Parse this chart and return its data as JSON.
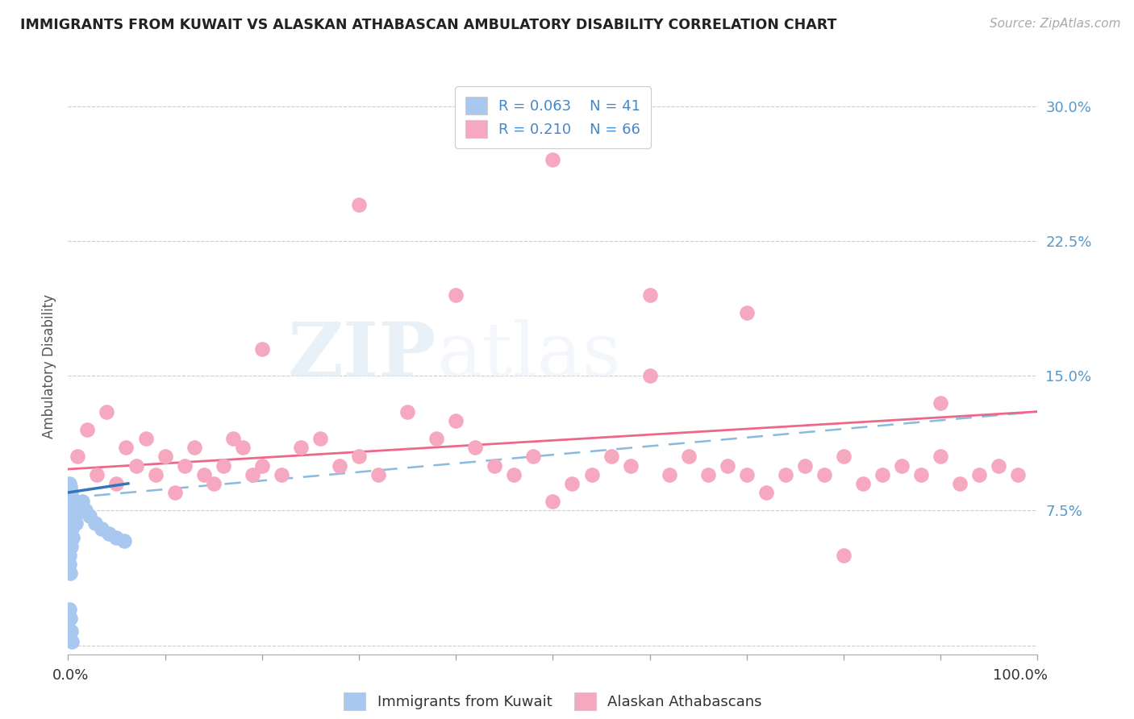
{
  "title": "IMMIGRANTS FROM KUWAIT VS ALASKAN ATHABASCAN AMBULATORY DISABILITY CORRELATION CHART",
  "source": "Source: ZipAtlas.com",
  "ylabel": "Ambulatory Disability",
  "xlim": [
    0.0,
    1.0
  ],
  "ylim": [
    -0.005,
    0.315
  ],
  "yticks": [
    0.0,
    0.075,
    0.15,
    0.225,
    0.3
  ],
  "ytick_labels": [
    "",
    "7.5%",
    "15.0%",
    "22.5%",
    "30.0%"
  ],
  "legend_r1": "R = 0.063",
  "legend_n1": "N = 41",
  "legend_r2": "R = 0.210",
  "legend_n2": "N = 66",
  "legend_label1": "Immigrants from Kuwait",
  "legend_label2": "Alaskan Athabascans",
  "blue_color": "#a8c8f0",
  "pink_color": "#f5a8c0",
  "blue_line_color": "#3377bb",
  "pink_line_color": "#ee6688",
  "dashed_line_color": "#88bbdd",
  "watermark_zip": "ZIP",
  "watermark_atlas": "atlas",
  "blue_points_x": [
    0.001,
    0.001,
    0.001,
    0.001,
    0.001,
    0.001,
    0.001,
    0.001,
    0.001,
    0.001,
    0.002,
    0.002,
    0.002,
    0.002,
    0.002,
    0.002,
    0.003,
    0.003,
    0.003,
    0.003,
    0.004,
    0.004,
    0.005,
    0.005,
    0.006,
    0.007,
    0.008,
    0.01,
    0.012,
    0.015,
    0.018,
    0.022,
    0.028,
    0.035,
    0.042,
    0.05,
    0.058,
    0.001,
    0.002,
    0.003,
    0.004
  ],
  "blue_points_y": [
    0.09,
    0.085,
    0.08,
    0.075,
    0.07,
    0.065,
    0.06,
    0.055,
    0.05,
    0.045,
    0.088,
    0.082,
    0.075,
    0.068,
    0.055,
    0.04,
    0.085,
    0.078,
    0.07,
    0.055,
    0.082,
    0.065,
    0.08,
    0.06,
    0.075,
    0.072,
    0.068,
    0.075,
    0.078,
    0.08,
    0.075,
    0.072,
    0.068,
    0.065,
    0.062,
    0.06,
    0.058,
    0.02,
    0.015,
    0.008,
    0.002
  ],
  "pink_points_x": [
    0.01,
    0.02,
    0.03,
    0.04,
    0.05,
    0.06,
    0.07,
    0.08,
    0.09,
    0.1,
    0.11,
    0.12,
    0.13,
    0.14,
    0.15,
    0.16,
    0.17,
    0.18,
    0.19,
    0.2,
    0.22,
    0.24,
    0.26,
    0.28,
    0.3,
    0.32,
    0.35,
    0.38,
    0.4,
    0.42,
    0.44,
    0.46,
    0.48,
    0.5,
    0.52,
    0.54,
    0.56,
    0.58,
    0.6,
    0.62,
    0.64,
    0.66,
    0.68,
    0.7,
    0.72,
    0.74,
    0.76,
    0.78,
    0.8,
    0.82,
    0.84,
    0.86,
    0.88,
    0.9,
    0.92,
    0.94,
    0.96,
    0.98,
    0.4,
    0.5,
    0.6,
    0.7,
    0.3,
    0.2,
    0.8,
    0.9
  ],
  "pink_points_y": [
    0.105,
    0.12,
    0.095,
    0.13,
    0.09,
    0.11,
    0.1,
    0.115,
    0.095,
    0.105,
    0.085,
    0.1,
    0.11,
    0.095,
    0.09,
    0.1,
    0.115,
    0.11,
    0.095,
    0.1,
    0.095,
    0.11,
    0.115,
    0.1,
    0.105,
    0.095,
    0.13,
    0.115,
    0.125,
    0.11,
    0.1,
    0.095,
    0.105,
    0.08,
    0.09,
    0.095,
    0.105,
    0.1,
    0.15,
    0.095,
    0.105,
    0.095,
    0.1,
    0.095,
    0.085,
    0.095,
    0.1,
    0.095,
    0.105,
    0.09,
    0.095,
    0.1,
    0.095,
    0.105,
    0.09,
    0.095,
    0.1,
    0.095,
    0.195,
    0.27,
    0.195,
    0.185,
    0.245,
    0.165,
    0.05,
    0.135
  ],
  "blue_trend_x": [
    0.0,
    0.062
  ],
  "blue_trend_y": [
    0.085,
    0.09
  ],
  "pink_trend_x": [
    0.0,
    1.0
  ],
  "pink_trend_y": [
    0.098,
    0.13
  ],
  "dashed_trend_x": [
    0.0,
    1.0
  ],
  "dashed_trend_y": [
    0.082,
    0.13
  ]
}
